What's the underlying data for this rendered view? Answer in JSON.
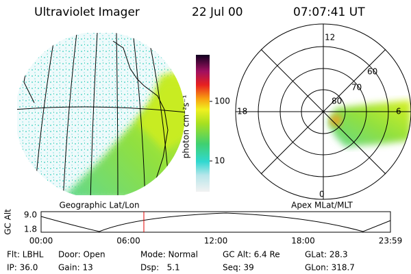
{
  "header": {
    "title": "Ultraviolet Imager",
    "date": "22 Jul 00",
    "time": "07:07:41 UT"
  },
  "colorbar": {
    "label": "photon cm⁻²s⁻¹",
    "ticks": [
      "100",
      "10"
    ]
  },
  "left_panel": {
    "caption": "Geographic Lat/Lon"
  },
  "right_panel": {
    "caption": "Apex MLat/MLT",
    "mlt_labels": [
      "12",
      "18",
      "6",
      "0"
    ],
    "lat_labels": [
      "60",
      "70",
      "80"
    ]
  },
  "orbit_plot": {
    "ylabel": "GC Alt",
    "yticks": [
      "9.0",
      "1.8"
    ],
    "xticks": [
      "00:00",
      "06:00",
      "12:00",
      "18:00",
      "23:59"
    ]
  },
  "info": [
    [
      "Flt: LBHL",
      "Door: Open",
      "Mode: Normal",
      "GC Alt: 6.4 Re",
      "GLat: 28.3"
    ],
    [
      "IP: 36.0",
      "Gain: 13",
      "Dsp:   5.1",
      "Seq: 39",
      "GLon: 318.7"
    ]
  ]
}
